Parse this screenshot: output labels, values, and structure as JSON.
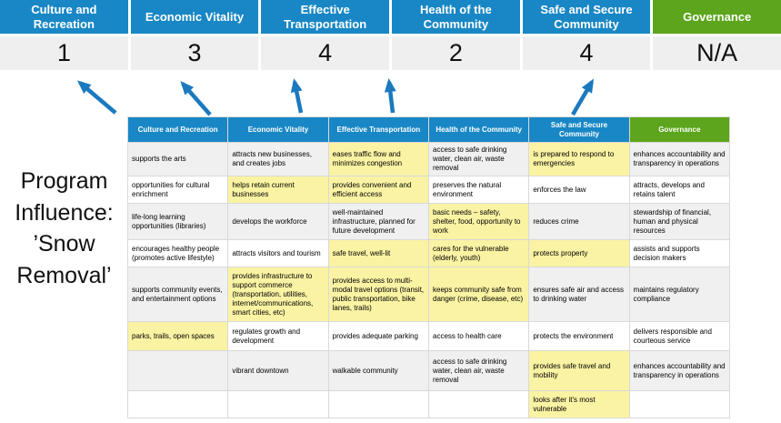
{
  "colors": {
    "blue": "#1987C5",
    "green": "#5CA51C",
    "yellow": "#FAF3A3",
    "arrow": "#1B79BE",
    "band_row": "#F0F0F0",
    "score_bg": "#EFEFEF"
  },
  "title": {
    "lines": [
      "Program",
      "Influence:",
      "’Snow",
      "Removal’"
    ]
  },
  "summary": {
    "columns": [
      {
        "label": "Culture and Recreation",
        "score": "1",
        "color": "blue"
      },
      {
        "label": "Economic Vitality",
        "score": "3",
        "color": "blue"
      },
      {
        "label": "Effective Transportation",
        "score": "4",
        "color": "blue"
      },
      {
        "label": "Health of the Community",
        "score": "2",
        "color": "blue"
      },
      {
        "label": "Safe and Secure Community",
        "score": "4",
        "color": "blue"
      },
      {
        "label": "Governance",
        "score": "N/A",
        "color": "green"
      }
    ]
  },
  "matrix": {
    "headers": [
      {
        "label": "Culture and Recreation",
        "color": "blue"
      },
      {
        "label": "Economic Vitality",
        "color": "blue"
      },
      {
        "label": "Effective Transportation",
        "color": "blue"
      },
      {
        "label": "Health of the Community",
        "color": "blue"
      },
      {
        "label": "Safe and Secure Community",
        "color": "blue"
      },
      {
        "label": "Governance",
        "color": "green"
      }
    ],
    "rows": [
      [
        {
          "t": "supports the arts",
          "h": false
        },
        {
          "t": "attracts new businesses, and creates jobs",
          "h": false
        },
        {
          "t": "eases traffic flow and minimizes congestion",
          "h": true
        },
        {
          "t": "access to safe drinking water, clean air, waste removal",
          "h": false
        },
        {
          "t": "is prepared to respond to emergencies",
          "h": true
        },
        {
          "t": "enhances accountability and transparency in operations",
          "h": false
        }
      ],
      [
        {
          "t": "opportunities for cultural enrichment",
          "h": false
        },
        {
          "t": "helps retain current businesses",
          "h": true
        },
        {
          "t": "provides convenient and efficient access",
          "h": true
        },
        {
          "t": "preserves the natural environment",
          "h": false
        },
        {
          "t": "enforces the law",
          "h": false
        },
        {
          "t": "attracts, develops and retains talent",
          "h": false
        }
      ],
      [
        {
          "t": "life-long learning opportunities (libraries)",
          "h": false
        },
        {
          "t": "develops the workforce",
          "h": false
        },
        {
          "t": "well-maintained infrastructure, planned for future development",
          "h": false
        },
        {
          "t": "basic needs – safety, shelter, food, opportunity to work",
          "h": true
        },
        {
          "t": "reduces crime",
          "h": false
        },
        {
          "t": "stewardship of financial, human and physical resources",
          "h": false
        }
      ],
      [
        {
          "t": "encourages healthy people (promotes active lifestyle)",
          "h": false
        },
        {
          "t": "attracts visitors and tourism",
          "h": false
        },
        {
          "t": "safe travel, well-lit",
          "h": true
        },
        {
          "t": "cares for the vulnerable (elderly, youth)",
          "h": true
        },
        {
          "t": "protects property",
          "h": true
        },
        {
          "t": "assists and supports decision makers",
          "h": false
        }
      ],
      [
        {
          "t": "supports community events, and entertainment options",
          "h": false
        },
        {
          "t": "provides infrastructure to support commerce (transportation, utilities, internet/communications, smart cities, etc)",
          "h": true
        },
        {
          "t": "provides access to multi-modal travel options (transit, public transportation, bike lanes, trails)",
          "h": true
        },
        {
          "t": "keeps community safe from danger (crime, disease, etc)",
          "h": true
        },
        {
          "t": "ensures safe air and access to drinking water",
          "h": false
        },
        {
          "t": "maintains regulatory compliance",
          "h": false
        }
      ],
      [
        {
          "t": "parks, trails, open spaces",
          "h": true
        },
        {
          "t": "regulates growth and development",
          "h": false
        },
        {
          "t": "provides adequate parking",
          "h": false
        },
        {
          "t": "access to health care",
          "h": false
        },
        {
          "t": "protects the environment",
          "h": false
        },
        {
          "t": "delivers responsible and courteous service",
          "h": false
        }
      ],
      [
        {
          "t": "",
          "h": false
        },
        {
          "t": "vibrant downtown",
          "h": false
        },
        {
          "t": "walkable community",
          "h": false
        },
        {
          "t": "access to safe drinking water, clean air, waste removal",
          "h": false
        },
        {
          "t": "provides safe travel and mobility",
          "h": true
        },
        {
          "t": "enhances accountability and transparency in operations",
          "h": false
        }
      ],
      [
        {
          "t": "",
          "h": false
        },
        {
          "t": "",
          "h": false
        },
        {
          "t": "",
          "h": false
        },
        {
          "t": "",
          "h": false
        },
        {
          "t": "looks after it's most vulnerable",
          "h": true
        },
        {
          "t": "",
          "h": false
        }
      ]
    ]
  },
  "arrows": {
    "count": 5,
    "description": "blue arrows linking matrix columns to priority scores"
  }
}
